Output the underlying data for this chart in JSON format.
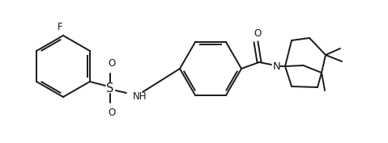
{
  "background_color": "#ffffff",
  "line_color": "#1a1a1a",
  "line_width": 1.4,
  "font_size": 8.5,
  "figsize": [
    4.79,
    1.77
  ],
  "dpi": 100,
  "xlim": [
    0,
    4.79
  ],
  "ylim": [
    0,
    1.77
  ]
}
